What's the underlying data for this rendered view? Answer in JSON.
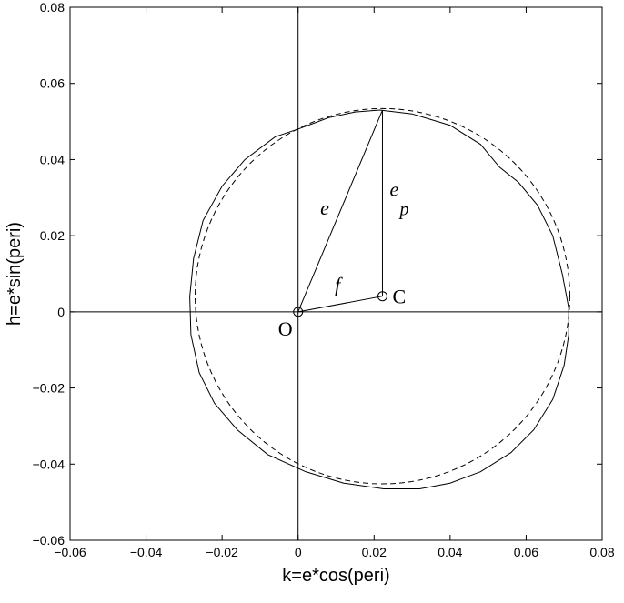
{
  "chart_data": {
    "type": "line",
    "title": "",
    "xlabel": "k=e*cos(peri)",
    "ylabel": "h=e*sin(peri)",
    "xlim": [
      -0.06,
      0.08
    ],
    "ylim": [
      -0.06,
      0.08
    ],
    "xticks": [
      -0.06,
      -0.04,
      -0.02,
      0,
      0.02,
      0.04,
      0.06,
      0.08
    ],
    "yticks": [
      -0.06,
      -0.04,
      -0.02,
      0,
      0.02,
      0.04,
      0.06,
      0.08
    ],
    "xtick_labels": [
      "−0.06",
      "−0.04",
      "−0.02",
      "0",
      "0.02",
      "0.04",
      "0.06",
      "0.08"
    ],
    "ytick_labels": [
      "−0.06",
      "−0.04",
      "−0.02",
      "0",
      "0.02",
      "0.04",
      "0.06",
      "0.08"
    ],
    "grid": false,
    "legend": "none",
    "series": [
      {
        "style": "solid",
        "x": [
          0.0215,
          0.03,
          0.04,
          0.048,
          0.053,
          0.058,
          0.063,
          0.067,
          0.0695,
          0.0712,
          0.0712,
          0.07,
          0.067,
          0.062,
          0.056,
          0.048,
          0.04,
          0.032,
          0.0225,
          0.012,
          0.002,
          -0.008,
          -0.016,
          -0.022,
          -0.026,
          -0.0282,
          -0.0285,
          -0.0275,
          -0.025,
          -0.02,
          -0.014,
          -0.006,
          0.0,
          0.008,
          0.015,
          0.0215
        ],
        "y": [
          0.053,
          0.052,
          0.049,
          0.044,
          0.038,
          0.034,
          0.028,
          0.02,
          0.01,
          0.001,
          -0.006,
          -0.014,
          -0.023,
          -0.031,
          -0.037,
          -0.042,
          -0.045,
          -0.0465,
          -0.0465,
          -0.045,
          -0.042,
          -0.0375,
          -0.031,
          -0.024,
          -0.016,
          -0.006,
          0.004,
          0.014,
          0.024,
          0.033,
          0.04,
          0.046,
          0.048,
          0.051,
          0.0525,
          0.053
        ]
      },
      {
        "style": "dashed",
        "center": [
          0.0222,
          0.0041
        ],
        "radius": 0.0493
      }
    ],
    "annotations": {
      "origin": {
        "label": "O",
        "x": 0,
        "y": 0
      },
      "center": {
        "label": "C",
        "x": 0.0222,
        "y": 0.0041
      },
      "top": {
        "x": 0.0222,
        "y": 0.053
      },
      "e_label": "e",
      "ep_label": "e",
      "ep_sub": "p",
      "f_label": "f"
    }
  }
}
